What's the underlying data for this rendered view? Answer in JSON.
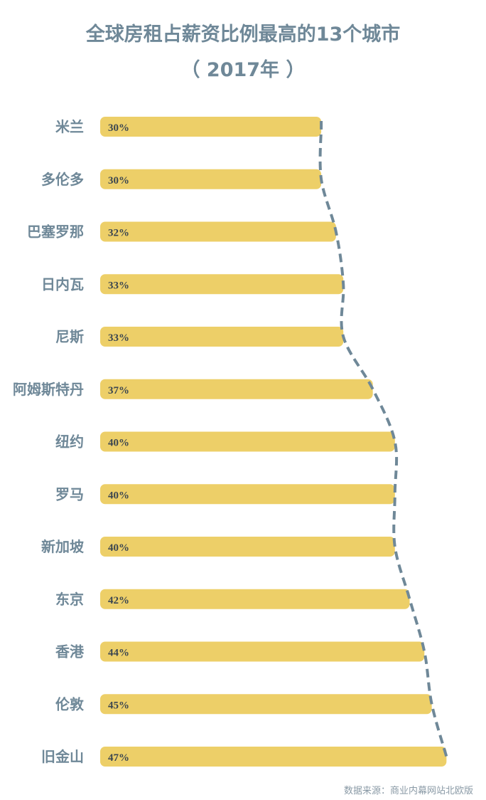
{
  "chart_data": {
    "type": "bar",
    "orientation": "horizontal",
    "title": "全球房租占薪资比例最高的13个城市",
    "subtitle": "（ 2017年 ）",
    "categories": [
      "米兰",
      "多伦多",
      "巴塞罗那",
      "日内瓦",
      "尼斯",
      "阿姆斯特丹",
      "纽约",
      "罗马",
      "新加坡",
      "东京",
      "香港",
      "伦敦",
      "旧金山"
    ],
    "values": [
      30,
      30,
      32,
      33,
      33,
      37,
      40,
      40,
      40,
      42,
      44,
      45,
      47
    ],
    "labels": [
      "30%",
      "30%",
      "32%",
      "33%",
      "33%",
      "37%",
      "40%",
      "40%",
      "40%",
      "42%",
      "44%",
      "45%",
      "47%"
    ],
    "unit": "%",
    "xlim": [
      0,
      47
    ],
    "grid": false,
    "trend_line": "dashed curve through bar ends",
    "colors": {
      "bar": "#edcf68",
      "line": "#6f8898",
      "label": "#6f8898",
      "value_text": "#3b4650"
    },
    "source": "数据来源：商业内幕网站北欧版"
  }
}
